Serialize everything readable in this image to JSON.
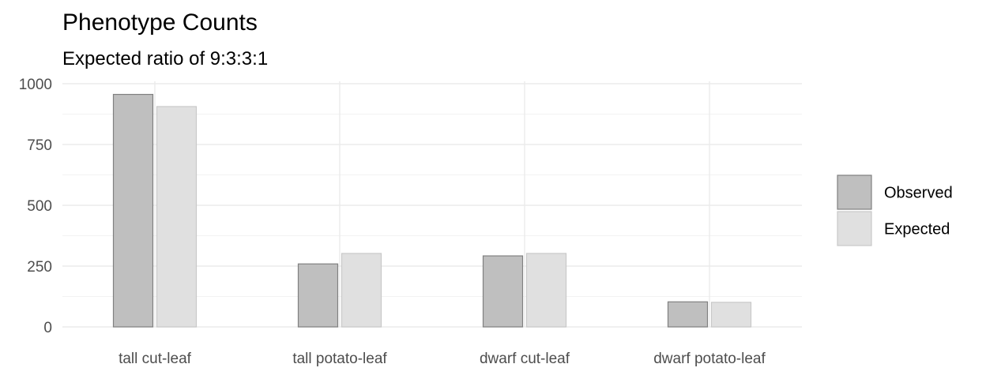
{
  "chart_data": {
    "type": "bar",
    "title": "Phenotype Counts",
    "subtitle": "Expected ratio of 9:3:3:1",
    "xlabel": "",
    "ylabel": "",
    "categories": [
      "tall cut-leaf",
      "tall potato-leaf",
      "dwarf cut-leaf",
      "dwarf potato-leaf"
    ],
    "series": [
      {
        "name": "Observed",
        "values": [
          956,
          259,
          292,
          103
        ],
        "color": "#bfbfbf",
        "stroke": "#808080"
      },
      {
        "name": "Expected",
        "values": [
          906,
          302,
          302,
          101
        ],
        "color": "#e0e0e0",
        "stroke": "#c8c8c8"
      }
    ],
    "ylim": [
      0,
      1000
    ],
    "yticks": [
      "0",
      "250",
      "500",
      "750",
      "1000"
    ],
    "grid": true,
    "legend_position": "right"
  }
}
